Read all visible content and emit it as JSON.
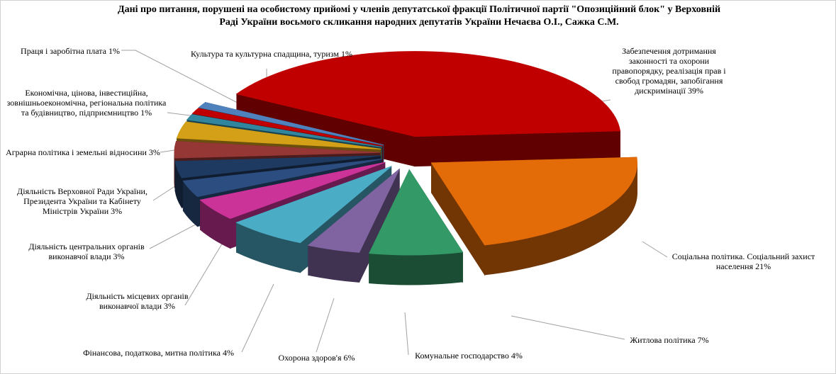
{
  "chart_data": {
    "type": "pie3d",
    "title": "Дані про питання, порушені на особистому прийомі у членів депутатської фракції Політичної партії \"Опозиційний блок\" у Верховній Раді України восьмого скликання народних депутатів України Нечаєва О.І., Сажка С.М.",
    "categories": [
      "Забезпечення дотримання законності та охорони правопорядку, реалізація прав і свобод громадян, запобігання дискримінації",
      "Соціальна політика. Соціальний захист населення",
      "Житлова політика",
      "Комунальне господарство",
      "Охорона здоров'я",
      "Фінансова, податкова, митна політика",
      "Діяльність місцевих органів виконавчої влади",
      "Діяльність центральних органів виконавчої влади",
      "Діяльність Верховної Ради України, Президента України та Кабінету Міністрів України",
      "Аграрна політика і земельні відносини",
      "Економічна, цінова, інвестиційна, зовнішньоекономічна, регіональна політика та будівництво, підприємництво",
      "Праця і заробітна плата",
      "Культура та культурна спадщина, туризм"
    ],
    "values": [
      39,
      21,
      7,
      4,
      6,
      4,
      3,
      3,
      3,
      3,
      1,
      1,
      1
    ],
    "value_labels": [
      "39%",
      "21%",
      "7%",
      "4%",
      "6%",
      "4%",
      "3%",
      "3%",
      "3%",
      "3%",
      "1%",
      "1%",
      "1%"
    ],
    "colors": [
      "#c00000",
      "#e36c09",
      "#339966",
      "#8064a2",
      "#4bacc6",
      "#cc3399",
      "#2c4d7f",
      "#1f3a60",
      "#953735",
      "#d4a017",
      "#31859c",
      "#c00000",
      "#4f81bd"
    ]
  }
}
